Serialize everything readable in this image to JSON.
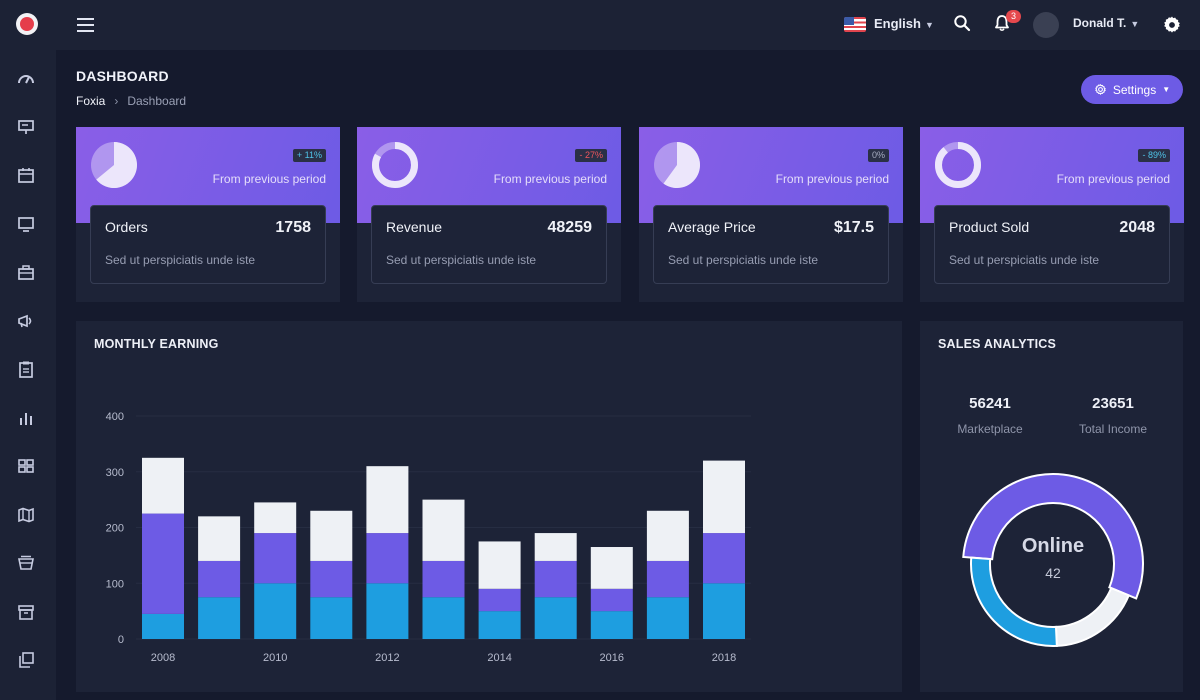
{
  "header": {
    "language": "English",
    "notifications_count": "3",
    "user_name": "Donald T."
  },
  "page": {
    "title": "DASHBOARD",
    "breadcrumb": [
      "Foxia",
      "Dashboard"
    ],
    "settings_label": "Settings"
  },
  "sidebar": {
    "icons": [
      "speedometer-icon",
      "presentation-icon",
      "calendar-icon",
      "monitor-icon",
      "briefcase-icon",
      "megaphone-icon",
      "clipboard-icon",
      "bar-chart-icon",
      "grid-icon",
      "map-icon",
      "archive-icon",
      "archive-box-icon",
      "copy-icon"
    ]
  },
  "stats": [
    {
      "label": "Orders",
      "value": "1758",
      "badge": "+ 11%",
      "badge_color": "#4fc3e8",
      "period": "From previous period",
      "desc": "Sed ut perspiciatis unde iste",
      "chart": "pie",
      "fraction": 0.64
    },
    {
      "label": "Revenue",
      "value": "48259",
      "badge": "- 27%",
      "badge_color": "#f0565e",
      "period": "From previous period",
      "desc": "Sed ut perspiciatis unde iste",
      "chart": "donut",
      "fraction": 0.83
    },
    {
      "label": "Average Price",
      "value": "$17.5",
      "badge": "0%",
      "badge_color": "#a7adc2",
      "period": "From previous period",
      "desc": "Sed ut perspiciatis unde iste",
      "chart": "pie",
      "fraction": 0.6
    },
    {
      "label": "Product Sold",
      "value": "2048",
      "badge": "- 89%",
      "badge_color": "#4fc3e8",
      "period": "From previous period",
      "desc": "Sed ut perspiciatis unde iste",
      "chart": "donut",
      "fraction": 0.89
    }
  ],
  "earning": {
    "title": "MONTHLY EARNING"
  },
  "chart_data": {
    "type": "bar",
    "stacked": true,
    "categories": [
      "2008",
      "2009",
      "2010",
      "2011",
      "2012",
      "2013",
      "2014",
      "2015",
      "2016",
      "2017",
      "2018"
    ],
    "x_tick_labels": [
      "2008",
      "2010",
      "2012",
      "2014",
      "2016",
      "2018"
    ],
    "series": [
      {
        "color": "#1e9ee0",
        "values": [
          45,
          75,
          100,
          75,
          100,
          75,
          50,
          75,
          50,
          75,
          100
        ]
      },
      {
        "color": "#6d5be5",
        "values": [
          180,
          65,
          90,
          65,
          90,
          65,
          40,
          65,
          40,
          65,
          90
        ]
      },
      {
        "color": "#eef1f5",
        "values": [
          100,
          80,
          55,
          90,
          120,
          110,
          85,
          50,
          75,
          90,
          130
        ]
      }
    ],
    "ylim": [
      0,
      400
    ],
    "yticks": [
      0,
      100,
      200,
      300,
      400
    ],
    "grid": true
  },
  "sales": {
    "title": "SALES ANALYTICS",
    "metrics": [
      {
        "value": "56241",
        "label": "Marketplace"
      },
      {
        "value": "23651",
        "label": "Total Income"
      }
    ],
    "donut_label": "Online",
    "donut_value": "42",
    "donut_segments": [
      {
        "color": "#6d5be5",
        "value": 55
      },
      {
        "color": "#eef1f5",
        "value": 18
      },
      {
        "color": "#1e9ee0",
        "value": 27
      }
    ]
  }
}
